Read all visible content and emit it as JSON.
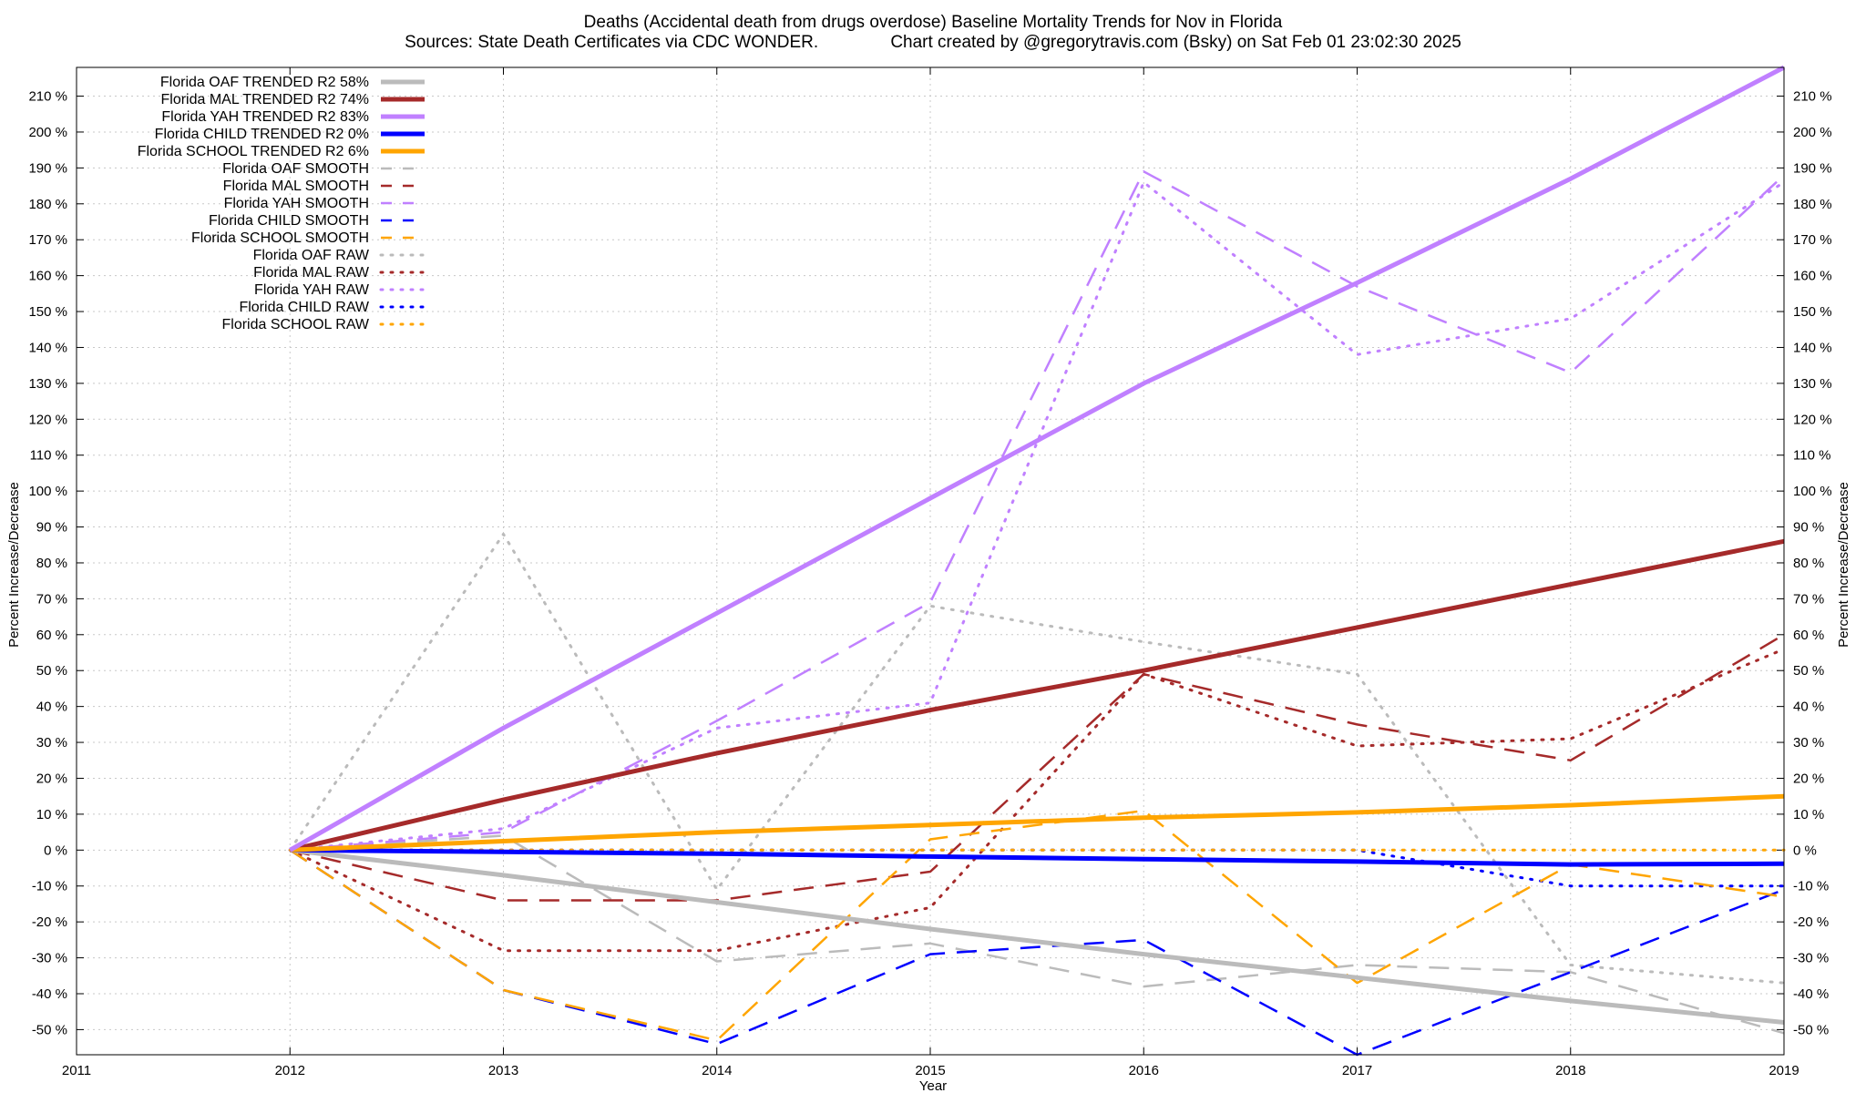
{
  "chart_data": {
    "type": "line",
    "title": "Deaths (Accidental death from drugs overdose)  Baseline Mortality Trends for Nov in Florida",
    "subtitle": "Sources: State Death Certificates via CDC WONDER.               Chart created by @gregorytravis.com (Bsky) on Sat Feb 01 23:02:30 2025",
    "xlabel": "Year",
    "ylabel": "Percent Increase/Decrease",
    "y2label": "Percent Increase/Decrease",
    "xlim": [
      2011,
      2019
    ],
    "ylim": [
      -57,
      218
    ],
    "x_ticks": [
      "2011",
      "2012",
      "2013",
      "2014",
      "2015",
      "2016",
      "2017",
      "2018",
      "2019"
    ],
    "y_ticks": [
      -50,
      -40,
      -30,
      -20,
      -10,
      0,
      10,
      20,
      30,
      40,
      50,
      60,
      70,
      80,
      90,
      100,
      110,
      120,
      130,
      140,
      150,
      160,
      170,
      180,
      190,
      200,
      210
    ],
    "y_tick_suffix": " %",
    "grid": true,
    "legend_position": "top-left",
    "x": [
      2012,
      2013,
      2014,
      2015,
      2016,
      2017,
      2018,
      2019
    ],
    "series": [
      {
        "name": "Florida OAF TRENDED R2  58%",
        "style": "trend",
        "color": "#bbbbbb",
        "values": [
          0,
          -7,
          -14.5,
          -22,
          -29,
          -35.5,
          -42,
          -48
        ]
      },
      {
        "name": "Florida MAL TRENDED R2  74%",
        "style": "trend",
        "color": "#a52a2a",
        "values": [
          0,
          14,
          27,
          39,
          50,
          62,
          74,
          86
        ]
      },
      {
        "name": "Florida YAH TRENDED R2  83%",
        "style": "trend",
        "color": "#c080ff",
        "values": [
          0,
          34,
          66,
          98,
          130,
          158,
          187,
          218
        ]
      },
      {
        "name": "Florida CHILD TRENDED R2   0%",
        "style": "trend",
        "color": "#0000ff",
        "values": [
          0,
          -0.5,
          -1,
          -1.8,
          -2.5,
          -3.2,
          -4,
          -3.8
        ]
      },
      {
        "name": "Florida SCHOOL TRENDED R2   6%",
        "style": "trend",
        "color": "#ffa500",
        "values": [
          0,
          2.5,
          5,
          7,
          9,
          10.5,
          12.5,
          15
        ]
      },
      {
        "name": "Florida OAF SMOOTH",
        "style": "smooth",
        "color": "#bbbbbb",
        "values": [
          0,
          4,
          -31,
          -26,
          -38,
          -32,
          -34,
          -51
        ]
      },
      {
        "name": "Florida MAL SMOOTH",
        "style": "smooth",
        "color": "#a52a2a",
        "values": [
          0,
          -14,
          -14,
          -6,
          49,
          35,
          25,
          60
        ]
      },
      {
        "name": "Florida YAH SMOOTH",
        "style": "smooth",
        "color": "#c080ff",
        "values": [
          0,
          5,
          36,
          69,
          189,
          157,
          133,
          188
        ]
      },
      {
        "name": "Florida CHILD SMOOTH",
        "style": "smooth",
        "color": "#0000ff",
        "values": [
          0,
          -39,
          -54,
          -29,
          -25,
          -57,
          -34,
          -11
        ]
      },
      {
        "name": "Florida SCHOOL SMOOTH",
        "style": "smooth",
        "color": "#ffa500",
        "values": [
          0,
          -39,
          -53,
          3,
          11,
          -37,
          -4,
          -13
        ]
      },
      {
        "name": "Florida OAF RAW",
        "style": "raw",
        "color": "#bbbbbb",
        "values": [
          0,
          88,
          -11,
          68,
          58,
          49,
          -32,
          -37
        ]
      },
      {
        "name": "Florida MAL RAW",
        "style": "raw",
        "color": "#a52a2a",
        "values": [
          0,
          -28,
          -28,
          -16,
          49,
          29,
          31,
          56
        ]
      },
      {
        "name": "Florida YAH RAW",
        "style": "raw",
        "color": "#c080ff",
        "values": [
          0,
          6,
          34,
          41,
          186,
          138,
          148,
          186
        ]
      },
      {
        "name": "Florida CHILD RAW",
        "style": "raw",
        "color": "#0000ff",
        "values": [
          0,
          0,
          0,
          0,
          0,
          0,
          -10,
          -10
        ]
      },
      {
        "name": "Florida SCHOOL RAW",
        "style": "raw",
        "color": "#ffa500",
        "values": [
          0,
          0,
          0,
          0,
          0,
          0,
          0,
          0
        ]
      }
    ]
  }
}
